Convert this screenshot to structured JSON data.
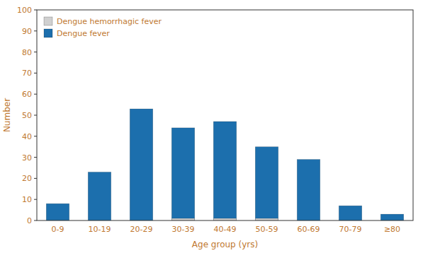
{
  "chart_data": {
    "type": "bar",
    "xlabel": "Age group (yrs)",
    "ylabel": "Number",
    "categories": [
      "0-9",
      "10-19",
      "20-29",
      "30-39",
      "40-49",
      "50-59",
      "60-69",
      "70-79",
      "≥80"
    ],
    "series": [
      {
        "name": "Dengue fever",
        "color": "#1c6fad",
        "values": [
          8,
          23,
          53,
          44,
          47,
          35,
          29,
          7,
          3
        ]
      },
      {
        "name": "Dengue hemorrhagic fever",
        "color": "#d0d0d0",
        "values": [
          0,
          0,
          0,
          1,
          1,
          1,
          0,
          0,
          0
        ]
      }
    ],
    "ylim": [
      0,
      100
    ],
    "yticks": [
      0,
      10,
      20,
      30,
      40,
      50,
      60,
      70,
      80,
      90,
      100
    ],
    "grid": false,
    "legend": "upper left"
  }
}
